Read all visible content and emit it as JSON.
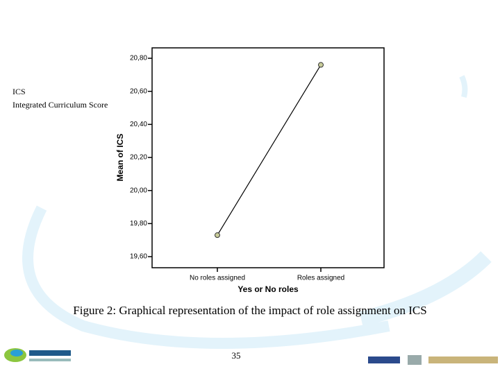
{
  "side_note": [
    "ICS",
    "Integrated Curriculum Score"
  ],
  "caption": "Figure 2: Graphical representation of the impact of role assignment on ICS",
  "page_number": "35",
  "chart_data": {
    "type": "line",
    "categories": [
      "No roles assigned",
      "Roles assigned"
    ],
    "series": [
      {
        "name": "Mean of ICS",
        "color": "#000000",
        "values": [
          19.73,
          20.76
        ]
      }
    ],
    "x_label": "Yes or No roles",
    "y_label": "Mean of ICS",
    "ylim": [
      19.533,
      20.863
    ],
    "yticks": [
      {
        "value": 19.6,
        "label": "19,60"
      },
      {
        "value": 19.8,
        "label": "19,80"
      },
      {
        "value": 20.0,
        "label": "20,00"
      },
      {
        "value": 20.2,
        "label": "20,20"
      },
      {
        "value": 20.4,
        "label": "20,40"
      },
      {
        "value": 20.6,
        "label": "20,60"
      },
      {
        "value": 20.8,
        "label": "20,80"
      }
    ],
    "marker_color": "#c8cc9a"
  }
}
